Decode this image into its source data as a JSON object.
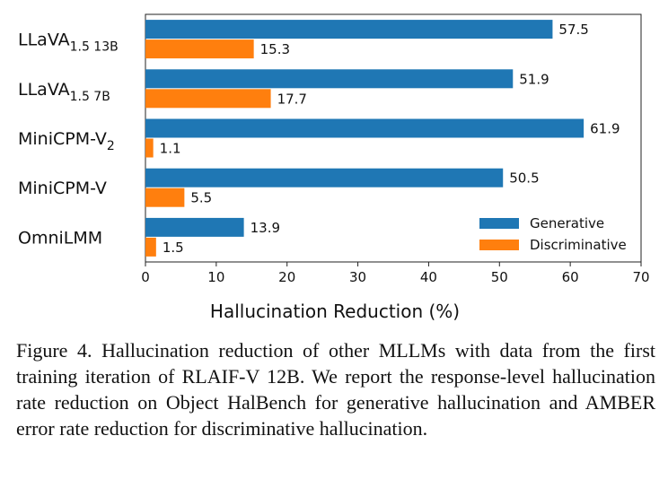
{
  "chart_data": {
    "type": "bar",
    "orientation": "horizontal",
    "categories": [
      {
        "base": "LLaVA",
        "sub": "1.5 13B"
      },
      {
        "base": "LLaVA",
        "sub": "1.5 7B"
      },
      {
        "base": "MiniCPM-V",
        "sub": "2"
      },
      {
        "base": "MiniCPM-V",
        "sub": ""
      },
      {
        "base": "OmniLMM",
        "sub": ""
      }
    ],
    "series": [
      {
        "name": "Generative",
        "color": "#1f77b4",
        "values": [
          57.5,
          51.9,
          61.9,
          50.5,
          13.9
        ]
      },
      {
        "name": "Discriminative",
        "color": "#ff7f0e",
        "values": [
          15.3,
          17.7,
          1.1,
          5.5,
          1.5
        ]
      }
    ],
    "xlabel": "Hallucination Reduction (%)",
    "xlim": [
      0,
      70
    ],
    "xticks": [
      0,
      10,
      20,
      30,
      40,
      50,
      60,
      70
    ],
    "grid": false,
    "legend_position": "lower-right"
  },
  "caption": "Figure 4.  Hallucination reduction of other MLLMs with data from the first training iteration of RLAIF-V 12B. We report the response-level hallucination rate reduction on Object HalBench for generative hallucination and AMBER error rate reduction for discriminative hallucination."
}
